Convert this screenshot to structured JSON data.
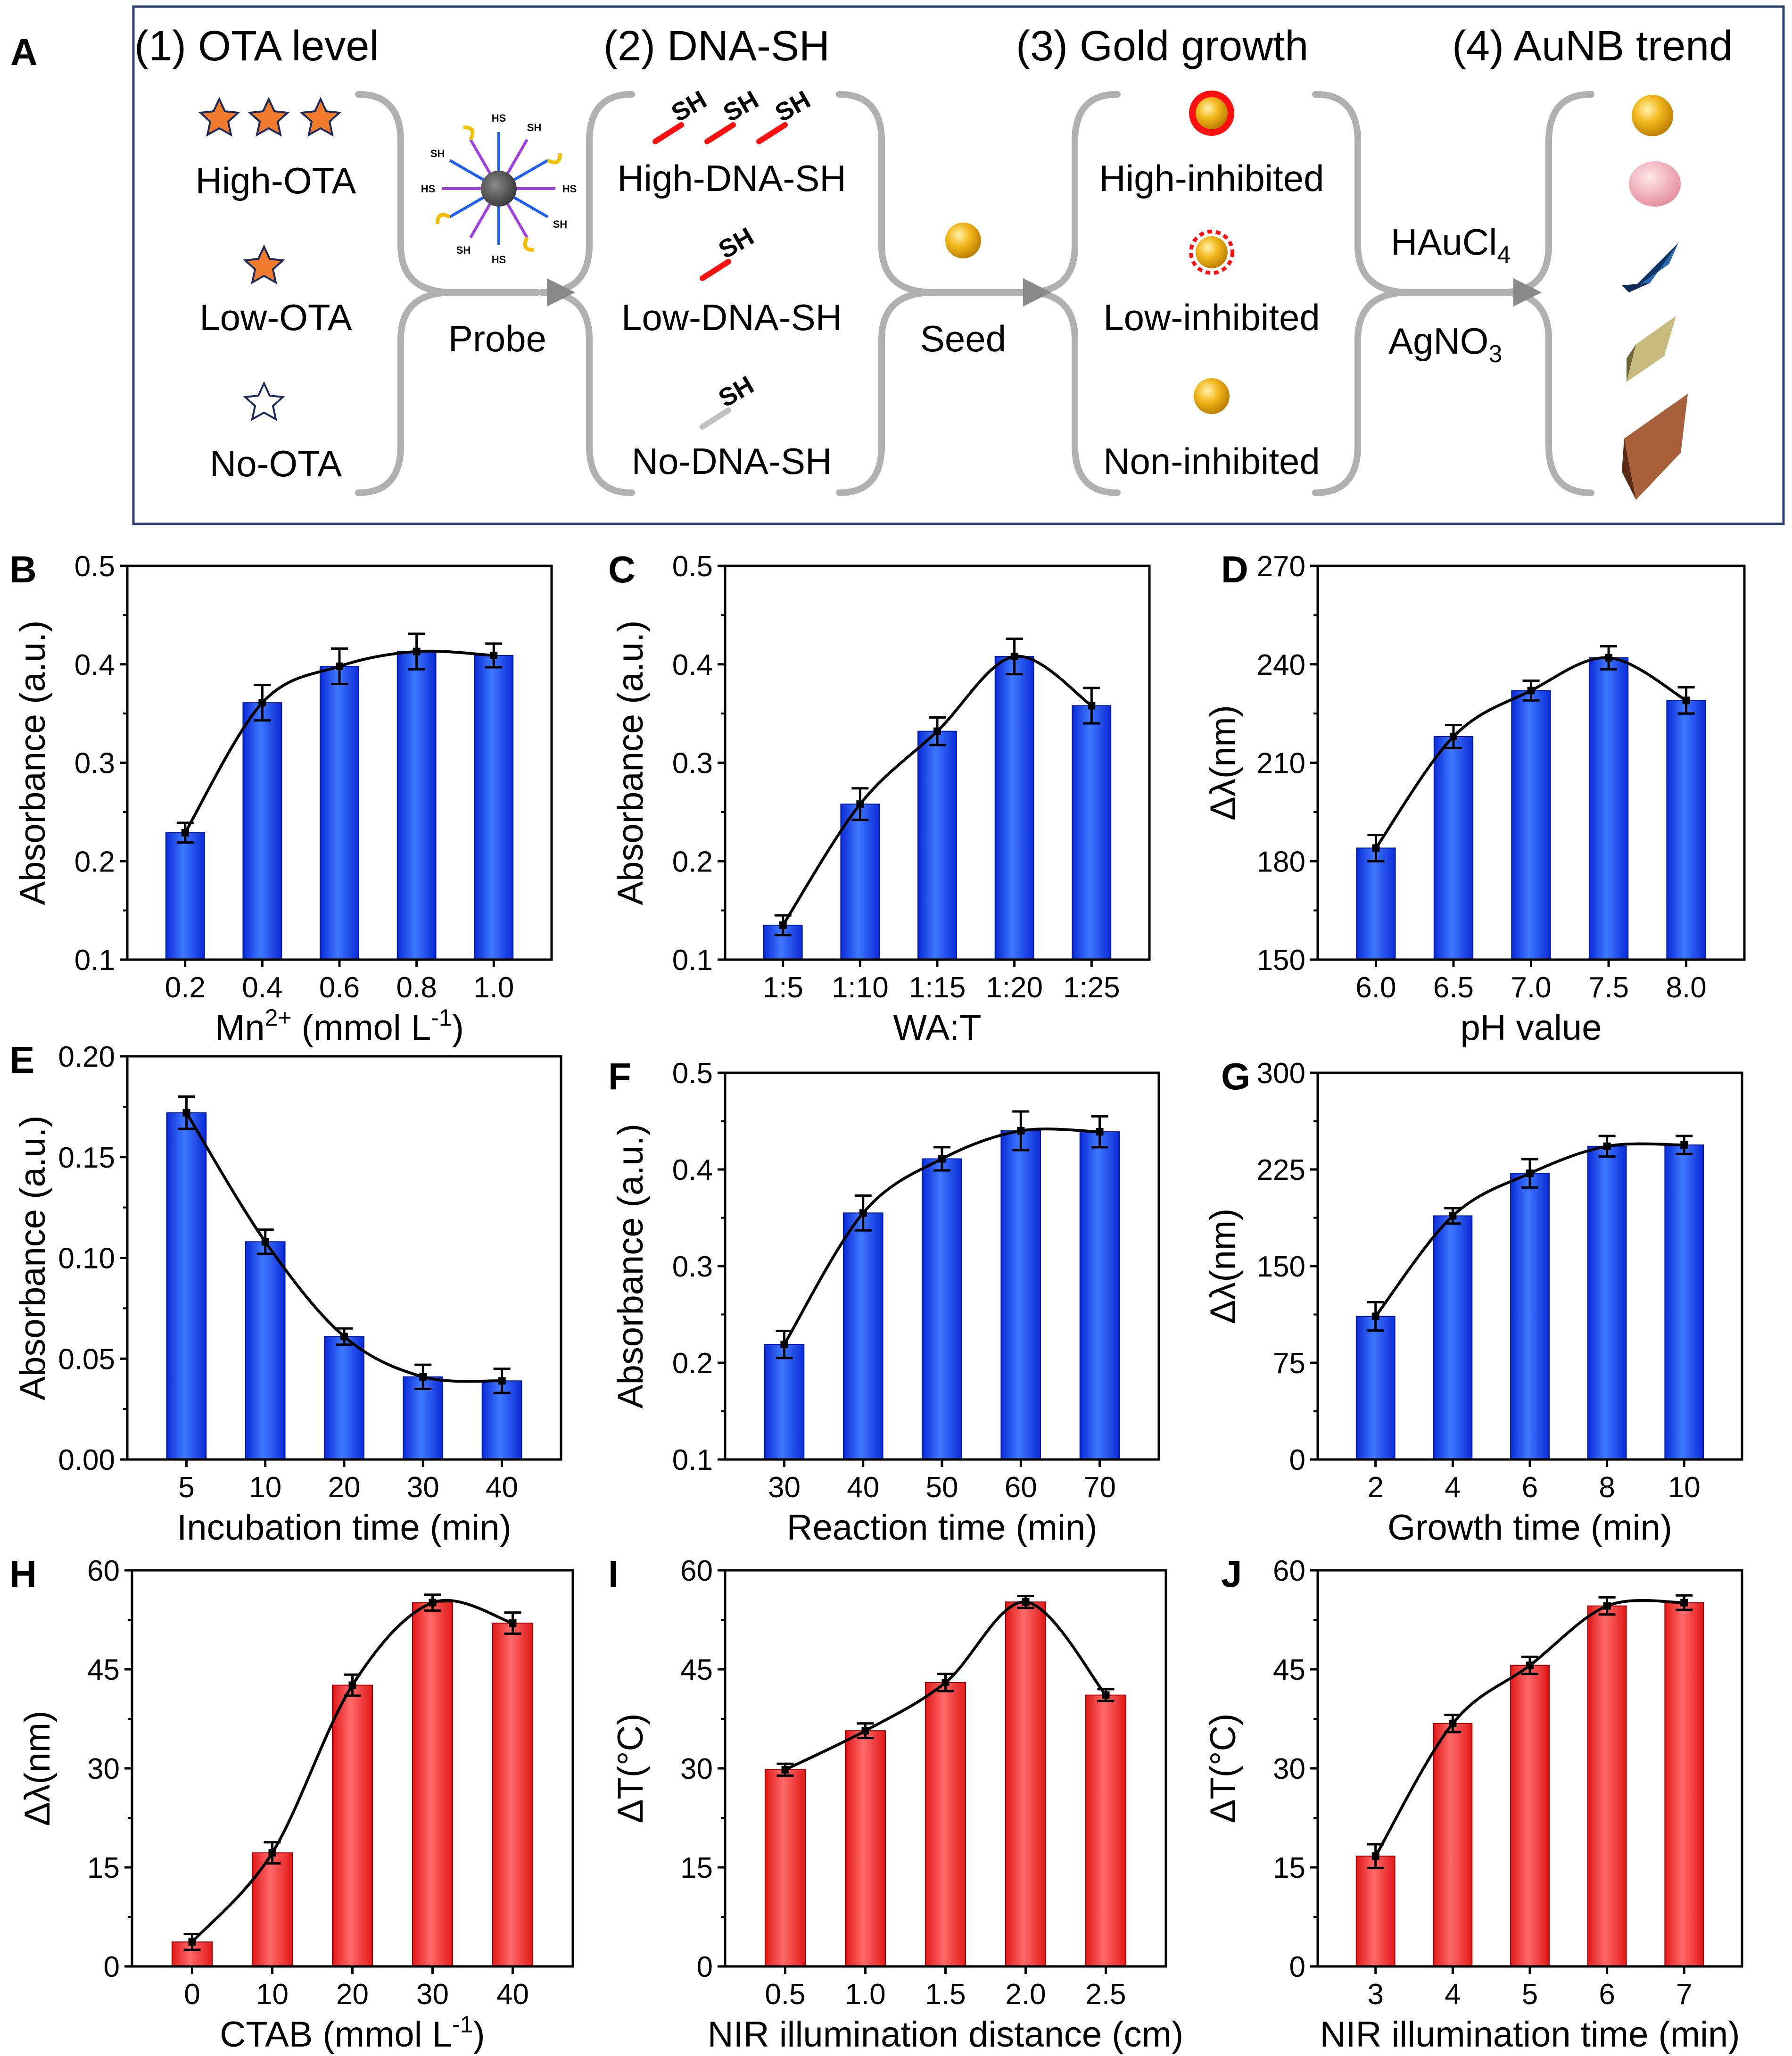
{
  "colors": {
    "blue_bar": "#1f4fe8",
    "red_bar": "#f03a3a",
    "frame": "#2a3f6f",
    "bracket": "#b0b0b0",
    "star_fill": "#f07b2d",
    "star_stroke": "#1b2a5a",
    "gold": "#f0b21a",
    "thiol_red": "#ff1010",
    "thiol_gray": "#c0c0c0",
    "pink": "#f2a6b2",
    "dark_blue": "#1e4e86",
    "olive": "#a79a5a",
    "brown": "#8e4a2a"
  },
  "schematic": {
    "panel_label": "A",
    "headers": [
      "(1) OTA level",
      "(2) DNA-SH",
      "(3) Gold growth",
      "(4) AuNB trend"
    ],
    "ota_levels": [
      "High-OTA",
      "Low-OTA",
      "No-OTA"
    ],
    "probe_label": "Probe",
    "dna_levels": [
      "High-DNA-SH",
      "Low-DNA-SH",
      "No-DNA-SH"
    ],
    "thiol_label": "SH",
    "probe_thiol_label": "HS",
    "seed_label": "Seed",
    "growth_levels": [
      "High-inhibited",
      "Low-inhibited",
      "Non-inhibited"
    ],
    "reagent_1": "HAuCl",
    "reagent_1_sub": "4",
    "reagent_2": "AgNO",
    "reagent_2_sub": "3"
  },
  "chart_data": [
    {
      "panel": "B",
      "type": "bar",
      "color": "blue",
      "categories": [
        "0.2",
        "0.4",
        "0.6",
        "0.8",
        "1.0"
      ],
      "values": [
        0.229,
        0.361,
        0.398,
        0.413,
        0.409
      ],
      "errors": [
        0.01,
        0.018,
        0.018,
        0.018,
        0.012
      ],
      "ylim": [
        0.1,
        0.5
      ],
      "yticks": [
        "0.1",
        "0.2",
        "0.3",
        "0.4",
        "0.5"
      ],
      "ylabel": "Absorbance (a.u.)",
      "xlabel": "Mn",
      "xlabel_sup": "2+",
      "xlabel_tail": " (mmol L",
      "xlabel_sup2": "-1",
      "xlabel_end": ")"
    },
    {
      "panel": "C",
      "type": "bar",
      "color": "blue",
      "categories": [
        "1:5",
        "1:10",
        "1:15",
        "1:20",
        "1:25"
      ],
      "values": [
        0.135,
        0.258,
        0.332,
        0.408,
        0.358
      ],
      "errors": [
        0.01,
        0.016,
        0.014,
        0.018,
        0.018
      ],
      "ylim": [
        0.1,
        0.5
      ],
      "yticks": [
        "0.1",
        "0.2",
        "0.3",
        "0.4",
        "0.5"
      ],
      "ylabel": "Absorbance (a.u.)",
      "xlabel": "WA:T"
    },
    {
      "panel": "D",
      "type": "bar",
      "color": "blue",
      "categories": [
        "6.0",
        "6.5",
        "7.0",
        "7.5",
        "8.0"
      ],
      "values": [
        184,
        218,
        232,
        242,
        229
      ],
      "errors": [
        4,
        3.5,
        3,
        3.5,
        4
      ],
      "ylim": [
        150,
        270
      ],
      "yticks": [
        "150",
        "180",
        "210",
        "240",
        "270"
      ],
      "ylabel": "Δλ(nm)",
      "xlabel": "pH value"
    },
    {
      "panel": "E",
      "type": "bar",
      "color": "blue",
      "categories": [
        "5",
        "10",
        "20",
        "30",
        "40"
      ],
      "values": [
        0.172,
        0.108,
        0.061,
        0.041,
        0.039
      ],
      "errors": [
        0.008,
        0.006,
        0.004,
        0.006,
        0.006
      ],
      "ylim": [
        0,
        0.2
      ],
      "yticks": [
        "0.00",
        "0.05",
        "0.10",
        "0.15",
        "0.20"
      ],
      "ylabel": "Absorbance (a.u.)",
      "xlabel": "Incubation time (min)"
    },
    {
      "panel": "F",
      "type": "bar",
      "color": "blue",
      "categories": [
        "30",
        "40",
        "50",
        "60",
        "70"
      ],
      "values": [
        0.219,
        0.355,
        0.411,
        0.44,
        0.439
      ],
      "errors": [
        0.014,
        0.018,
        0.012,
        0.02,
        0.016
      ],
      "ylim": [
        0.1,
        0.5
      ],
      "yticks": [
        "0.1",
        "0.2",
        "0.3",
        "0.4",
        "0.5"
      ],
      "ylabel": "Absorbance (a.u.)",
      "xlabel": "Reaction time (min)"
    },
    {
      "panel": "G",
      "type": "bar",
      "color": "blue",
      "categories": [
        "2",
        "4",
        "6",
        "8",
        "10"
      ],
      "values": [
        111,
        189,
        222,
        243,
        244
      ],
      "errors": [
        11,
        6,
        11,
        8,
        7
      ],
      "ylim": [
        0,
        300
      ],
      "yticks": [
        "0",
        "75",
        "150",
        "225",
        "300"
      ],
      "ylabel": "Δλ(nm)",
      "xlabel": "Growth time (min)"
    },
    {
      "panel": "H",
      "type": "bar",
      "color": "red",
      "categories": [
        "0",
        "10",
        "20",
        "30",
        "40"
      ],
      "values": [
        3.7,
        17.2,
        42.6,
        55.1,
        52.0
      ],
      "errors": [
        1.2,
        1.6,
        1.6,
        1.2,
        1.6
      ],
      "ylim": [
        0,
        60
      ],
      "yticks": [
        "0",
        "15",
        "30",
        "45",
        "60"
      ],
      "ylabel": "Δλ(nm)",
      "xlabel": "CTAB (mmol L",
      "xlabel_sup": "-1",
      "xlabel_tail": ")"
    },
    {
      "panel": "I",
      "type": "bar",
      "color": "red",
      "categories": [
        "0.5",
        "1.0",
        "1.5",
        "2.0",
        "2.5"
      ],
      "values": [
        29.8,
        35.7,
        43.0,
        55.2,
        41.1
      ],
      "errors": [
        0.9,
        1.1,
        1.3,
        0.9,
        0.9
      ],
      "ylim": [
        0,
        60
      ],
      "yticks": [
        "0",
        "15",
        "30",
        "45",
        "60"
      ],
      "ylabel": "ΔT(°C)",
      "xlabel": "NIR illumination distance (cm)"
    },
    {
      "panel": "J",
      "type": "bar",
      "color": "red",
      "categories": [
        "3",
        "4",
        "5",
        "6",
        "7"
      ],
      "values": [
        16.7,
        36.8,
        45.6,
        54.6,
        55.1
      ],
      "errors": [
        1.8,
        1.3,
        1.3,
        1.3,
        1.1
      ],
      "ylim": [
        0,
        60
      ],
      "yticks": [
        "0",
        "15",
        "30",
        "45",
        "60"
      ],
      "ylabel": "ΔT(°C)",
      "xlabel": "NIR illumination time (min)"
    }
  ]
}
